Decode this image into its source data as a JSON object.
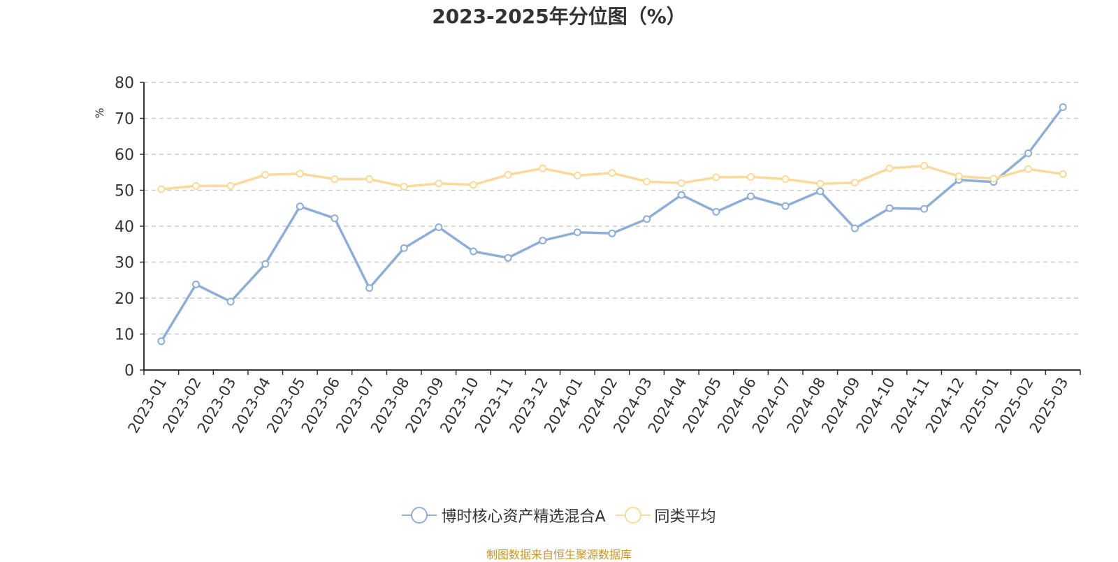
{
  "chart_data": {
    "type": "line",
    "title": "2023-2025年分位图（%）",
    "ylabel": "%",
    "ylim": [
      0,
      80
    ],
    "yticks": [
      0,
      10,
      20,
      30,
      40,
      50,
      60,
      70,
      80
    ],
    "grid": true,
    "legend_position": "bottom",
    "categories": [
      "2023-01",
      "2023-02",
      "2023-03",
      "2023-04",
      "2023-05",
      "2023-06",
      "2023-07",
      "2023-08",
      "2023-09",
      "2023-10",
      "2023-11",
      "2023-12",
      "2024-01",
      "2024-02",
      "2024-03",
      "2024-04",
      "2024-05",
      "2024-06",
      "2024-07",
      "2024-08",
      "2024-09",
      "2024-10",
      "2024-11",
      "2024-12",
      "2025-01",
      "2025-02",
      "2025-03"
    ],
    "series": [
      {
        "name": "博时核心资产精选混合A",
        "color": "#8eaed8",
        "values": [
          8,
          23.8,
          19,
          29.5,
          45.5,
          42.2,
          22.8,
          33.9,
          39.7,
          33,
          31.2,
          36,
          38.3,
          38,
          42,
          48.7,
          44,
          48.3,
          45.6,
          49.7,
          39.4,
          45,
          44.8,
          52.9,
          52.3,
          60.3,
          73.1
        ]
      },
      {
        "name": "同类平均",
        "color": "#fbd99a",
        "values": [
          50.3,
          51.2,
          51.2,
          54.3,
          54.6,
          53.1,
          53.1,
          51,
          51.9,
          51.5,
          54.3,
          56.1,
          54.1,
          54.8,
          52.4,
          52,
          53.6,
          53.7,
          53.1,
          51.8,
          52.1,
          56.1,
          56.8,
          53.9,
          53.2,
          55.9,
          54.5
        ]
      }
    ]
  },
  "legend": {
    "item1": "博时核心资产精选混合A",
    "item2": "同类平均"
  },
  "source": "制图数据来自恒生聚源数据库"
}
